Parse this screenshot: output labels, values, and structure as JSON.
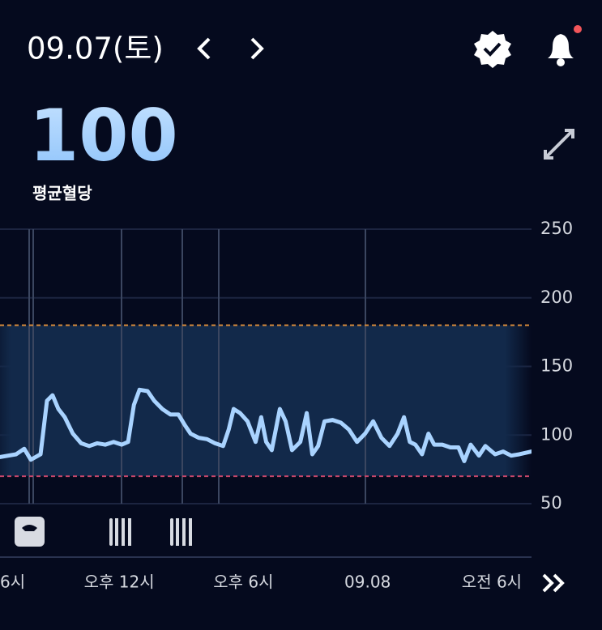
{
  "header": {
    "date": "09.07(토)",
    "average": 100,
    "average_label": "평균혈당"
  },
  "chart_data": {
    "type": "line",
    "color": "#a9d3ff",
    "target_range": [
      70,
      180
    ],
    "x": [
      6.24,
      7.02,
      7.41,
      7.73,
      8.2,
      8.51,
      8.78,
      9.06,
      9.37,
      9.76,
      10.16,
      10.55,
      10.94,
      11.33,
      11.73,
      12.12,
      12.43,
      12.71,
      12.98,
      13.37,
      13.69,
      14.08,
      14.47,
      14.86,
      15.18,
      15.45,
      15.84,
      16.24,
      16.63,
      17.02,
      17.29,
      17.53,
      17.84,
      18.2,
      18.59,
      18.86,
      19.1,
      19.37,
      19.76,
      20.04,
      20.35,
      20.75,
      21.06,
      21.33,
      21.61,
      21.92,
      22.31,
      22.71,
      23.1,
      23.49,
      23.88,
      24.27,
      24.67,
      25.06,
      25.45,
      25.76,
      26.04,
      26.31,
      26.63,
      26.94,
      27.22,
      27.61,
      28.0,
      28.39,
      28.67,
      28.98,
      29.38,
      29.69,
      30.16,
      30.55,
      30.94,
      31.33,
      31.92
    ],
    "values": [
      84,
      86,
      90,
      82,
      86,
      125,
      129,
      119,
      113,
      101,
      94,
      92,
      94,
      93,
      95,
      93,
      95,
      122,
      133,
      132,
      125,
      119,
      115,
      115,
      107,
      101,
      98,
      97,
      94,
      92,
      104,
      119,
      116,
      110,
      95,
      113,
      95,
      89,
      119,
      110,
      89,
      95,
      116,
      86,
      92,
      110,
      111,
      109,
      104,
      95,
      101,
      110,
      98,
      92,
      101,
      113,
      95,
      93,
      86,
      101,
      93,
      93,
      91,
      91,
      81,
      93,
      85,
      92,
      86,
      88,
      85,
      86,
      88
    ],
    "xlim": [
      6.24,
      31.92
    ],
    "xticks": [
      {
        "value": 6,
        "label": "6시"
      },
      {
        "value": 12,
        "label": "오후 12시"
      },
      {
        "value": 18,
        "label": "오후 6시"
      },
      {
        "value": 24,
        "label": "09.08"
      },
      {
        "value": 30,
        "label": "오전 6시"
      }
    ],
    "ylim": [
      50,
      250
    ],
    "yticks": [
      50,
      100,
      150,
      200,
      250
    ],
    "grid": true
  }
}
